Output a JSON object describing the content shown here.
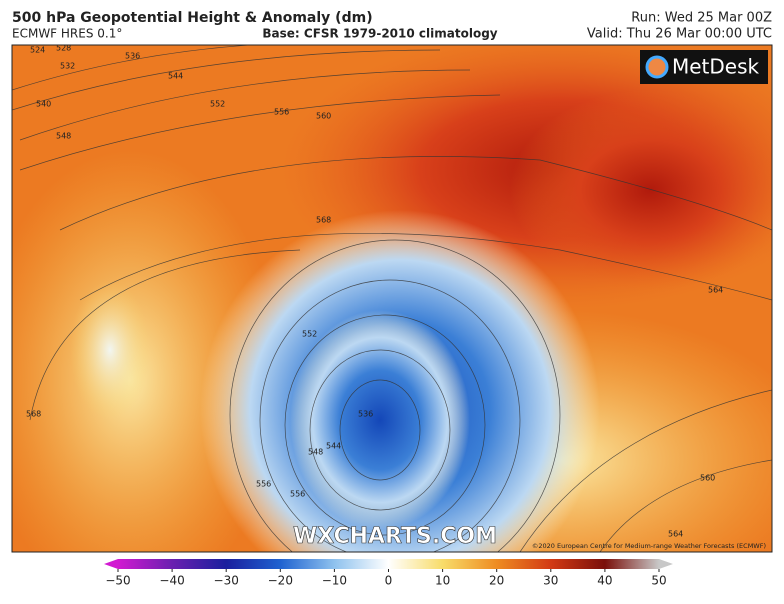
{
  "header": {
    "title": "500 hPa Geopotential Height & Anomaly (dm)",
    "model": "ECMWF HRES 0.1°",
    "base": "Base: CFSR 1979-2010 climatology",
    "run": "Run: Wed 25 Mar 00Z",
    "valid": "Valid: Thu 26 Mar 00:00 UTC"
  },
  "map": {
    "logo": "MetDesk",
    "watermark": "WXCHARTS.COM",
    "copyright": "©2020 European Centre for Medium-range Weather Forecasts (ECMWF)",
    "contour_labels": [
      524,
      528,
      532,
      536,
      544,
      540,
      548,
      552,
      556,
      560,
      568,
      564,
      552,
      568,
      536,
      544,
      548,
      556,
      556,
      560,
      564
    ]
  },
  "colorbar": {
    "lim": [
      -50,
      50
    ],
    "ticks": [
      {
        "value": -50,
        "label": "−50"
      },
      {
        "value": -40,
        "label": "−40"
      },
      {
        "value": -30,
        "label": "−30"
      },
      {
        "value": -20,
        "label": "−20"
      },
      {
        "value": -10,
        "label": "−10"
      },
      0,
      10,
      20,
      30,
      40,
      50
    ]
  }
}
